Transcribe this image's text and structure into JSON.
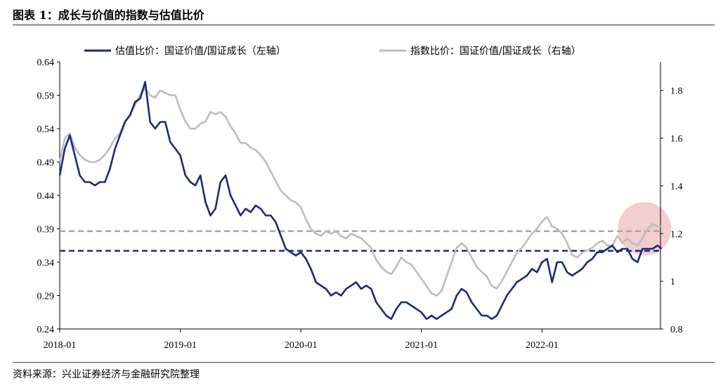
{
  "title": "图表 1：成长与价值的指数与估值比价",
  "source": "资料来源：兴业证券经济与金融研究院整理",
  "chart_data": {
    "type": "line",
    "x_tick_labels": [
      "2018-01",
      "2019-01",
      "2020-01",
      "2021-01",
      "2022-01"
    ],
    "x_tick_index": [
      0,
      12,
      24,
      36,
      48
    ],
    "y_left": {
      "ticks": [
        "0.24",
        "0.29",
        "0.34",
        "0.39",
        "0.44",
        "0.49",
        "0.54",
        "0.59",
        "0.64"
      ],
      "ylim": [
        0.24,
        0.64
      ]
    },
    "y_right": {
      "ticks": [
        "0.8",
        "1",
        "1.2",
        "1.4",
        "1.6",
        "1.8"
      ],
      "ylim": [
        0.8,
        1.92
      ]
    },
    "series": [
      {
        "name": "估值比价：国证价值/国证成长（左轴）",
        "axis": "left",
        "color": "#1b2a7a",
        "x": [
          0,
          0.5,
          1,
          1.5,
          2,
          2.5,
          3,
          3.5,
          4,
          4.5,
          5,
          5.5,
          6,
          6.5,
          7,
          7.5,
          8,
          8.5,
          9,
          9.5,
          10,
          10.5,
          11,
          11.5,
          12,
          12.5,
          13,
          13.5,
          14,
          14.5,
          15,
          15.5,
          16,
          16.5,
          17,
          17.5,
          18,
          18.5,
          19,
          19.5,
          20,
          20.5,
          21,
          21.5,
          22,
          22.5,
          23,
          23.5,
          24,
          24.5,
          25,
          25.5,
          26,
          26.5,
          27,
          27.5,
          28,
          28.5,
          29,
          29.5,
          30,
          30.5,
          31,
          31.5,
          32,
          32.5,
          33,
          33.5,
          34,
          34.5,
          35,
          35.5,
          36,
          36.5,
          37,
          37.5,
          38,
          38.5,
          39,
          39.5,
          40,
          40.5,
          41,
          41.5,
          42,
          42.5,
          43,
          43.5,
          44,
          44.5,
          45,
          45.5,
          46,
          46.5,
          47,
          47.5,
          48,
          48.5,
          49,
          49.5,
          50,
          50.5,
          51,
          51.5,
          52,
          52.5,
          53,
          53.5,
          54,
          54.5,
          55,
          55.5,
          56,
          56.5,
          57,
          57.5,
          58,
          58.5,
          59,
          59.5,
          59.9
        ],
        "values": [
          0.47,
          0.51,
          0.53,
          0.5,
          0.47,
          0.46,
          0.46,
          0.455,
          0.46,
          0.46,
          0.48,
          0.51,
          0.53,
          0.55,
          0.56,
          0.58,
          0.585,
          0.61,
          0.55,
          0.54,
          0.55,
          0.55,
          0.52,
          0.51,
          0.5,
          0.47,
          0.46,
          0.455,
          0.47,
          0.43,
          0.41,
          0.42,
          0.46,
          0.47,
          0.44,
          0.425,
          0.41,
          0.42,
          0.415,
          0.425,
          0.42,
          0.41,
          0.41,
          0.4,
          0.38,
          0.36,
          0.355,
          0.35,
          0.355,
          0.345,
          0.33,
          0.31,
          0.305,
          0.3,
          0.29,
          0.295,
          0.29,
          0.3,
          0.305,
          0.31,
          0.3,
          0.305,
          0.3,
          0.28,
          0.27,
          0.26,
          0.255,
          0.27,
          0.28,
          0.28,
          0.275,
          0.27,
          0.265,
          0.255,
          0.26,
          0.255,
          0.26,
          0.265,
          0.27,
          0.29,
          0.3,
          0.295,
          0.28,
          0.27,
          0.26,
          0.26,
          0.255,
          0.26,
          0.275,
          0.29,
          0.3,
          0.31,
          0.315,
          0.32,
          0.33,
          0.325,
          0.34,
          0.345,
          0.31,
          0.34,
          0.34,
          0.325,
          0.32,
          0.325,
          0.33,
          0.34,
          0.345,
          0.355,
          0.355,
          0.36,
          0.365,
          0.355,
          0.36,
          0.36,
          0.345,
          0.34,
          0.36,
          0.36,
          0.36,
          0.365,
          0.36
        ]
      },
      {
        "name": "指数比价：国证价值/国证成长（右轴）",
        "axis": "right",
        "color": "#bdbdbd",
        "x": [
          0,
          0.5,
          1,
          1.5,
          2,
          2.5,
          3,
          3.5,
          4,
          4.5,
          5,
          5.5,
          6,
          6.5,
          7,
          7.5,
          8,
          8.5,
          9,
          9.5,
          10,
          10.5,
          11,
          11.5,
          12,
          12.5,
          13,
          13.5,
          14,
          14.5,
          15,
          15.5,
          16,
          16.5,
          17,
          17.5,
          18,
          18.5,
          19,
          19.5,
          20,
          20.5,
          21,
          21.5,
          22,
          22.5,
          23,
          23.5,
          24,
          24.5,
          25,
          25.5,
          26,
          26.5,
          27,
          27.5,
          28,
          28.5,
          29,
          29.5,
          30,
          30.5,
          31,
          31.5,
          32,
          32.5,
          33,
          33.5,
          34,
          34.5,
          35,
          35.5,
          36,
          36.5,
          37,
          37.5,
          38,
          38.5,
          39,
          39.5,
          40,
          40.5,
          41,
          41.5,
          42,
          42.5,
          43,
          43.5,
          44,
          44.5,
          45,
          45.5,
          46,
          46.5,
          47,
          47.5,
          48,
          48.5,
          49,
          49.5,
          50,
          50.5,
          51,
          51.5,
          52,
          52.5,
          53,
          53.5,
          54,
          54.5,
          55,
          55.5,
          56,
          56.5,
          57,
          57.5,
          58,
          58.5,
          59,
          59.5,
          59.9
        ],
        "values": [
          1.5,
          1.6,
          1.62,
          1.56,
          1.53,
          1.51,
          1.5,
          1.5,
          1.51,
          1.53,
          1.56,
          1.6,
          1.62,
          1.67,
          1.7,
          1.74,
          1.78,
          1.81,
          1.78,
          1.77,
          1.8,
          1.79,
          1.78,
          1.78,
          1.72,
          1.67,
          1.64,
          1.64,
          1.66,
          1.67,
          1.71,
          1.7,
          1.71,
          1.69,
          1.65,
          1.62,
          1.58,
          1.58,
          1.56,
          1.55,
          1.53,
          1.5,
          1.46,
          1.42,
          1.38,
          1.36,
          1.34,
          1.33,
          1.31,
          1.26,
          1.22,
          1.2,
          1.19,
          1.21,
          1.2,
          1.21,
          1.19,
          1.18,
          1.2,
          1.19,
          1.18,
          1.16,
          1.14,
          1.09,
          1.06,
          1.04,
          1.03,
          1.06,
          1.1,
          1.08,
          1.07,
          1.04,
          1.01,
          0.98,
          0.95,
          0.94,
          0.96,
          1.02,
          1.08,
          1.14,
          1.16,
          1.14,
          1.1,
          1.06,
          1.04,
          1.02,
          0.98,
          0.97,
          1.0,
          1.04,
          1.08,
          1.12,
          1.14,
          1.17,
          1.2,
          1.22,
          1.25,
          1.27,
          1.23,
          1.22,
          1.2,
          1.16,
          1.11,
          1.1,
          1.12,
          1.13,
          1.14,
          1.16,
          1.17,
          1.15,
          1.15,
          1.19,
          1.16,
          1.18,
          1.16,
          1.15,
          1.18,
          1.22,
          1.24,
          1.23,
          1.23
        ]
      }
    ],
    "reference_lines": [
      {
        "axis": "right",
        "value": 1.21,
        "color": "#a6a6a6",
        "style": "dashed"
      },
      {
        "axis": "left",
        "value": 0.357,
        "color": "#1b2a7a",
        "style": "dashed"
      }
    ],
    "highlight": {
      "x": 58.2,
      "axis": "right",
      "value": 1.22,
      "color": "#e8a6a6"
    }
  }
}
